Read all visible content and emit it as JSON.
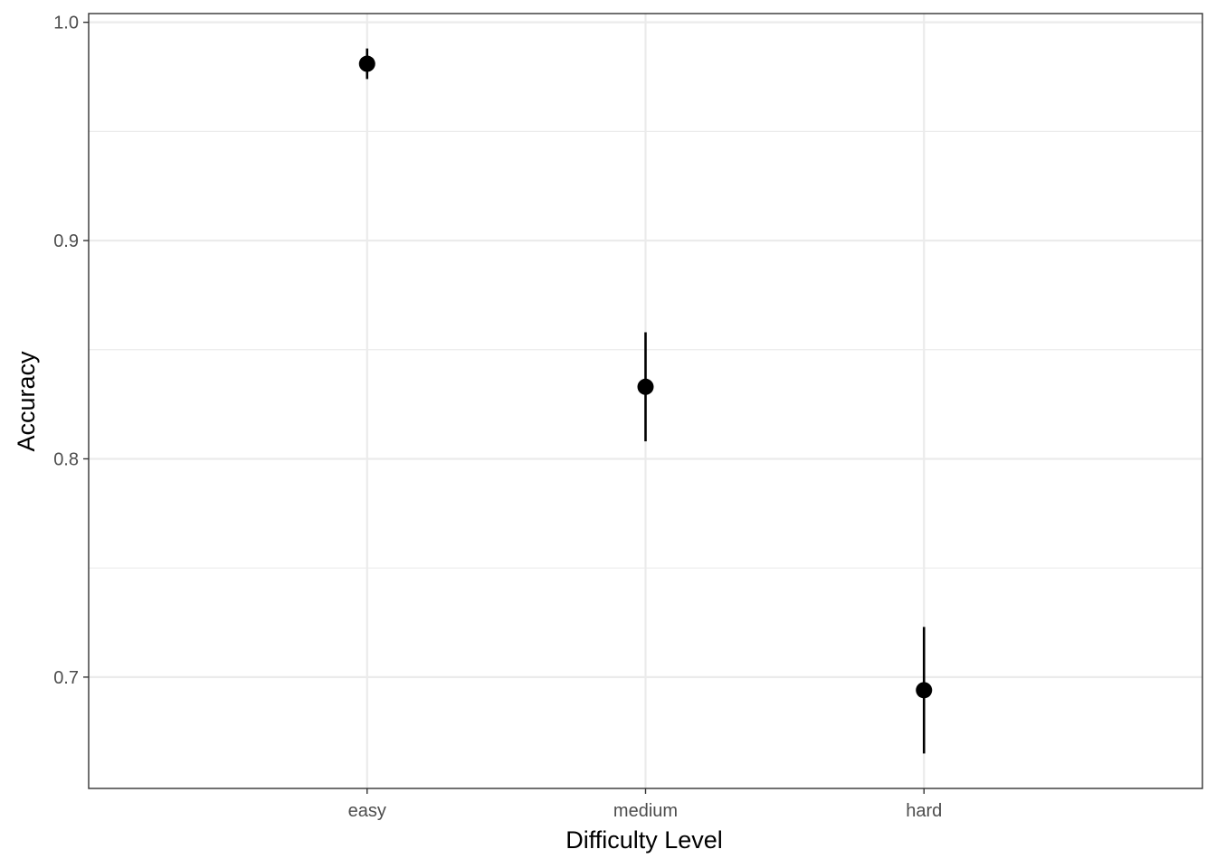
{
  "chart_data": {
    "type": "scatter",
    "title": "",
    "xlabel": "Difficulty Level",
    "ylabel": "Accuracy",
    "categories": [
      "easy",
      "medium",
      "hard"
    ],
    "values": [
      0.981,
      0.833,
      0.694
    ],
    "error_low": [
      0.974,
      0.808,
      0.665
    ],
    "error_high": [
      0.988,
      0.858,
      0.723
    ],
    "ylim": [
      0.649,
      1.004
    ],
    "y_ticks": [
      0.7,
      0.8,
      0.9,
      1.0
    ],
    "y_tick_labels": [
      "0.7",
      "0.8",
      "0.9",
      "1.0"
    ],
    "y_minor_ticks": [
      0.75,
      0.85,
      0.95
    ],
    "grid": true,
    "legend": "none",
    "colors": {
      "point": "#000000",
      "errorbar": "#000000",
      "grid": "#ebebeb",
      "panel_border": "#333333",
      "tick_label": "#4d4d4d"
    }
  }
}
